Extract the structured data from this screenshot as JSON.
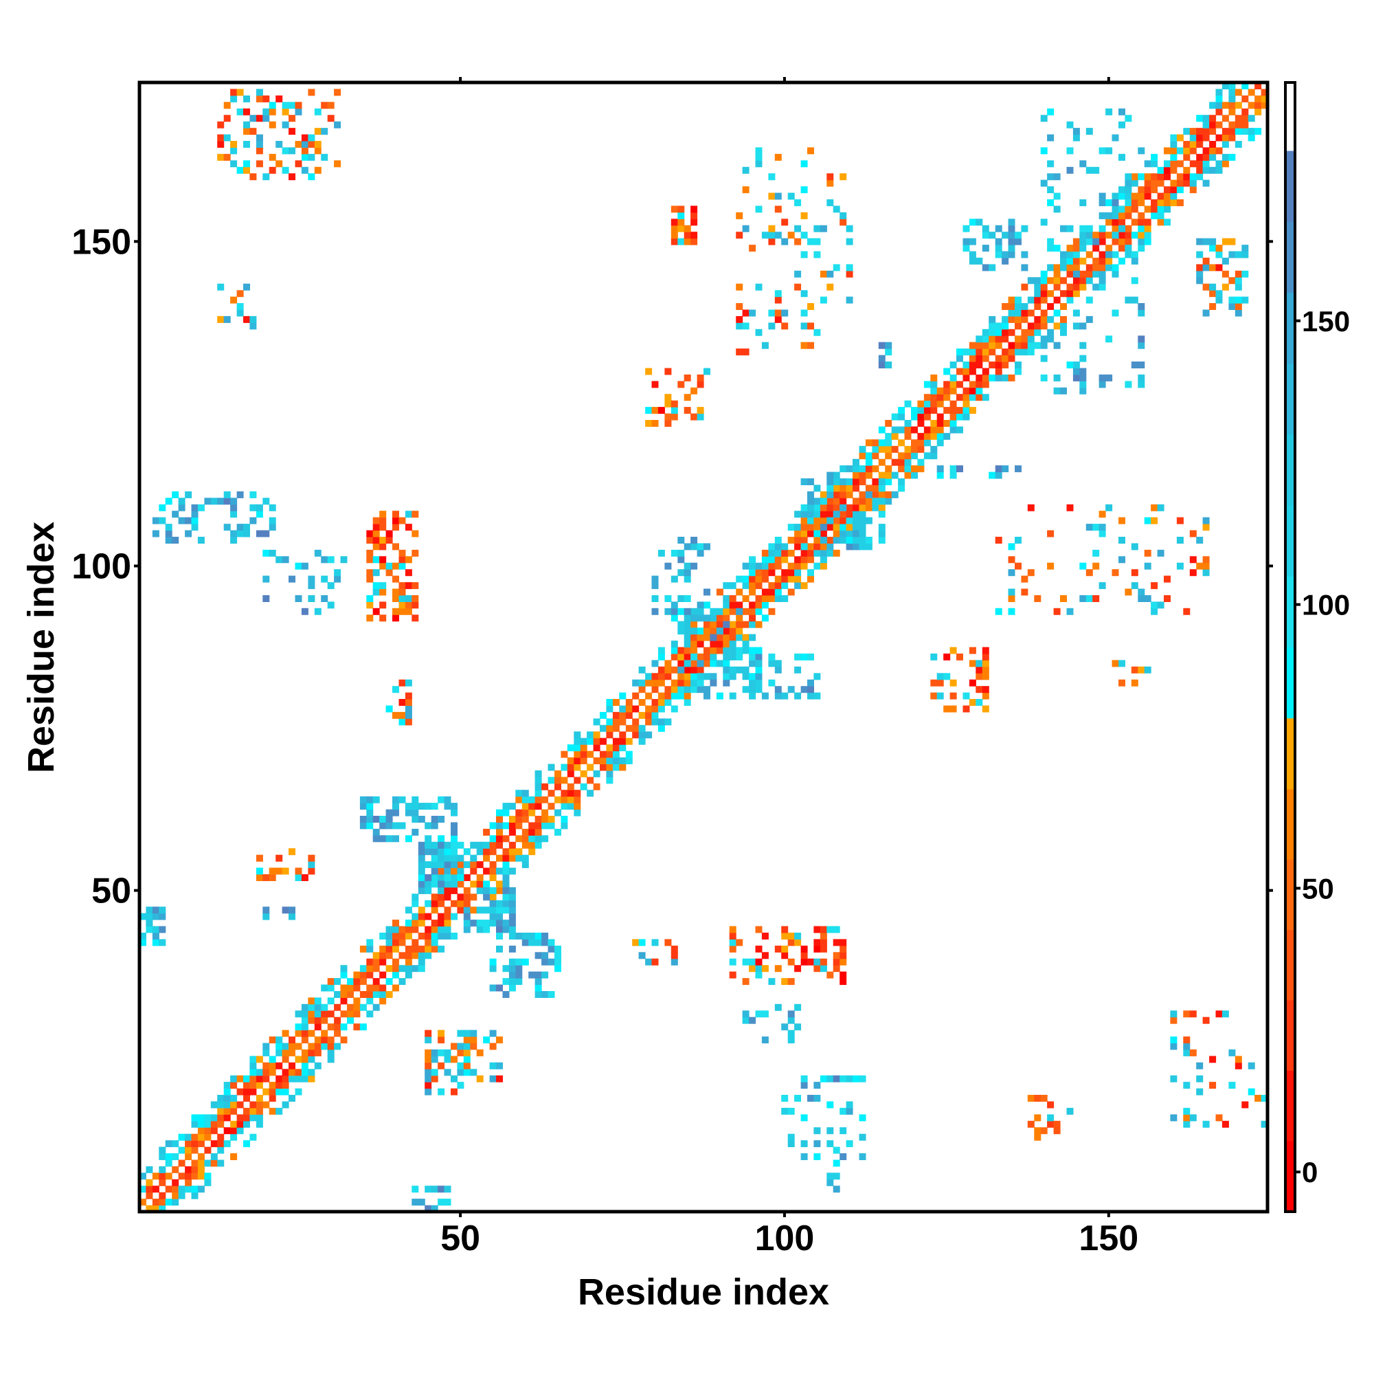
{
  "chart_data": {
    "type": "heatmap",
    "title": "",
    "xlabel": "Residue index",
    "ylabel": "Residue index",
    "xlim": [
      0.5,
      174.5
    ],
    "ylim": [
      0.5,
      174.5
    ],
    "xticks": [
      50,
      100,
      150
    ],
    "yticks": [
      50,
      100,
      150
    ],
    "grid": false,
    "colorbar": {
      "range": [
        -7,
        192
      ],
      "ticks": [
        0,
        50,
        100,
        150
      ],
      "bins": [
        {
          "from": -7,
          "to": 5.5,
          "color": "#ff0000"
        },
        {
          "from": 5.5,
          "to": 17.9,
          "color": "#ff1408"
        },
        {
          "from": 17.9,
          "to": 30.3,
          "color": "#ff3a10"
        },
        {
          "from": 30.3,
          "to": 42.7,
          "color": "#ff5510"
        },
        {
          "from": 42.7,
          "to": 55.1,
          "color": "#ff6a10"
        },
        {
          "from": 55.1,
          "to": 67.5,
          "color": "#ff8000"
        },
        {
          "from": 67.5,
          "to": 80,
          "color": "#ffa500"
        },
        {
          "from": 80,
          "to": 92.5,
          "color": "#00f0ff"
        },
        {
          "from": 92.5,
          "to": 105,
          "color": "#1ee0ee"
        },
        {
          "from": 105,
          "to": 117.5,
          "color": "#22d0e6"
        },
        {
          "from": 117.5,
          "to": 130,
          "color": "#25c8e0"
        },
        {
          "from": 130,
          "to": 142.5,
          "color": "#30b8dc"
        },
        {
          "from": 142.5,
          "to": 155,
          "color": "#38a8d4"
        },
        {
          "from": 155,
          "to": 167.5,
          "color": "#4a90c8"
        },
        {
          "from": 167.5,
          "to": 180,
          "color": "#5580c0"
        },
        {
          "from": 180,
          "to": 192,
          "color": "#ffffff"
        }
      ]
    },
    "diagonal_band": {
      "n_residues": 174,
      "half_width": 6,
      "near_values": [
        5,
        75
      ],
      "far_values": [
        85,
        140
      ]
    },
    "regions": [
      {
        "x": [
          13,
          31
        ],
        "y": [
          160,
          173
        ],
        "kind": "mixed",
        "density": 0.3
      },
      {
        "x": [
          13,
          18
        ],
        "y": [
          137,
          143
        ],
        "kind": "mixed",
        "density": 0.35
      },
      {
        "x": [
          3,
          21
        ],
        "y": [
          104,
          111
        ],
        "kind": "cool",
        "density": 0.3
      },
      {
        "x": [
          20,
          32
        ],
        "y": [
          93,
          104
        ],
        "kind": "cool",
        "density": 0.15
      },
      {
        "x": [
          36,
          43
        ],
        "y": [
          92,
          108
        ],
        "kind": "warm",
        "density": 0.5
      },
      {
        "x": [
          39,
          42
        ],
        "y": [
          76,
          82
        ],
        "kind": "mixed",
        "density": 0.4
      },
      {
        "x": [
          35,
          49
        ],
        "y": [
          58,
          64
        ],
        "kind": "cool",
        "density": 0.45
      },
      {
        "x": [
          44,
          50
        ],
        "y": [
          51,
          57
        ],
        "kind": "cool",
        "density": 0.8
      },
      {
        "x": [
          18,
          28
        ],
        "y": [
          52,
          56
        ],
        "kind": "warm",
        "density": 0.4
      },
      {
        "x": [
          1,
          4
        ],
        "y": [
          42,
          47
        ],
        "kind": "cool",
        "density": 0.5
      },
      {
        "x": [
          20,
          25
        ],
        "y": [
          45,
          47
        ],
        "kind": "cool",
        "density": 0.3
      },
      {
        "x": [
          51,
          58
        ],
        "y": [
          44,
          50
        ],
        "kind": "cool",
        "density": 0.8
      },
      {
        "x": [
          55,
          65
        ],
        "y": [
          34,
          43
        ],
        "kind": "cool",
        "density": 0.45
      },
      {
        "x": [
          45,
          56
        ],
        "y": [
          19,
          28
        ],
        "kind": "mixed",
        "density": 0.35
      },
      {
        "x": [
          43,
          48
        ],
        "y": [
          1,
          4
        ],
        "kind": "cool",
        "density": 0.5
      },
      {
        "x": [
          77,
          83
        ],
        "y": [
          39,
          42
        ],
        "kind": "mixed",
        "density": 0.3
      },
      {
        "x": [
          92,
          109
        ],
        "y": [
          36,
          44
        ],
        "kind": "warm",
        "density": 0.35
      },
      {
        "x": [
          94,
          102
        ],
        "y": [
          27,
          32
        ],
        "kind": "cool",
        "density": 0.2
      },
      {
        "x": [
          100,
          112
        ],
        "y": [
          9,
          21
        ],
        "kind": "cool",
        "density": 0.2
      },
      {
        "x": [
          107,
          108
        ],
        "y": [
          3,
          8
        ],
        "kind": "cool",
        "density": 0.4
      },
      {
        "x": [
          138,
          144
        ],
        "y": [
          12,
          18
        ],
        "kind": "mixed",
        "density": 0.3
      },
      {
        "x": [
          160,
          174
        ],
        "y": [
          14,
          32
        ],
        "kind": "mixed",
        "density": 0.15
      },
      {
        "x": [
          79,
          88
        ],
        "y": [
          122,
          130
        ],
        "kind": "warm",
        "density": 0.4
      },
      {
        "x": [
          80,
          88
        ],
        "y": [
          92,
          104
        ],
        "kind": "cool",
        "density": 0.3
      },
      {
        "x": [
          83,
          96
        ],
        "y": [
          80,
          93
        ],
        "kind": "cool",
        "density": 0.45
      },
      {
        "x": [
          95,
          105
        ],
        "y": [
          80,
          86
        ],
        "kind": "cool",
        "density": 0.35
      },
      {
        "x": [
          123,
          131
        ],
        "y": [
          78,
          87
        ],
        "kind": "warm",
        "density": 0.35
      },
      {
        "x": [
          151,
          156
        ],
        "y": [
          82,
          85
        ],
        "kind": "warm",
        "density": 0.35
      },
      {
        "x": [
          103,
          115
        ],
        "y": [
          103,
          114
        ],
        "kind": "cool",
        "density": 0.5
      },
      {
        "x": [
          119,
          136
        ],
        "y": [
          114,
          115
        ],
        "kind": "cool",
        "density": 0.3
      },
      {
        "x": [
          133,
          165
        ],
        "y": [
          93,
          109
        ],
        "kind": "mixed",
        "density": 0.12
      },
      {
        "x": [
          93,
          110
        ],
        "y": [
          133,
          164
        ],
        "kind": "mixed",
        "density": 0.15
      },
      {
        "x": [
          83,
          86
        ],
        "y": [
          150,
          155
        ],
        "kind": "warm",
        "density": 0.5
      },
      {
        "x": [
          115,
          116
        ],
        "y": [
          131,
          135
        ],
        "kind": "cool",
        "density": 0.5
      },
      {
        "x": [
          128,
          137
        ],
        "y": [
          146,
          153
        ],
        "kind": "cool",
        "density": 0.3
      },
      {
        "x": [
          140,
          155
        ],
        "y": [
          127,
          170
        ],
        "kind": "cool",
        "density": 0.15
      },
      {
        "x": [
          164,
          171
        ],
        "y": [
          139,
          150
        ],
        "kind": "mixed",
        "density": 0.35
      }
    ]
  }
}
